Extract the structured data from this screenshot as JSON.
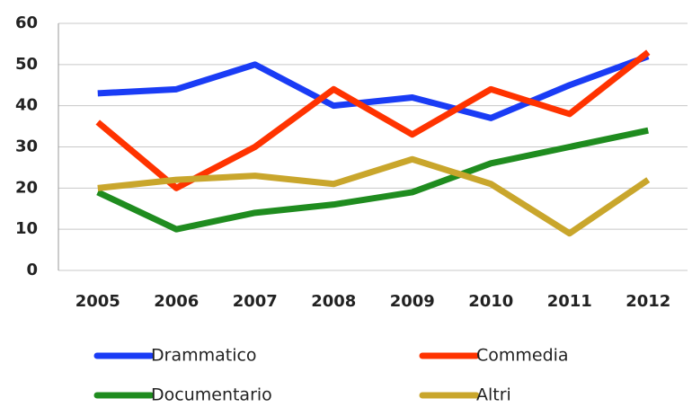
{
  "chart_data": {
    "type": "line",
    "categories": [
      "2005",
      "2006",
      "2007",
      "2008",
      "2009",
      "2010",
      "2011",
      "2012"
    ],
    "series": [
      {
        "name": "Drammatico",
        "color": "#1a3cf5",
        "values": [
          43,
          44,
          50,
          40,
          42,
          37,
          45,
          52
        ]
      },
      {
        "name": "Commedia",
        "color": "#ff3300",
        "values": [
          36,
          20,
          30,
          44,
          33,
          44,
          38,
          53
        ]
      },
      {
        "name": "Documentario",
        "color": "#1f8c1f",
        "values": [
          19,
          10,
          14,
          16,
          19,
          26,
          30,
          34
        ]
      },
      {
        "name": "Altri",
        "color": "#c9a62c",
        "values": [
          20,
          22,
          23,
          21,
          27,
          21,
          9,
          22
        ]
      }
    ],
    "ylim": [
      0,
      60
    ],
    "yticks": [
      0,
      10,
      20,
      30,
      40,
      50,
      60
    ],
    "grid": true
  }
}
